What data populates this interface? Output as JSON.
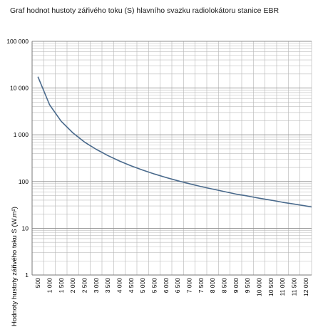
{
  "chart_data": {
    "type": "line",
    "title": "Graf hodnot hustoty zářivého toku (S) hlavního svazku radiolokátoru stanice EBR",
    "xlabel": "",
    "ylabel": "Hodnoty hustoty zářivého toku S  (W.m²)",
    "y_scale": "log",
    "ylim": [
      1,
      100000
    ],
    "xlim": [
      500,
      12000
    ],
    "grid": true,
    "line_color": "#4a6a8c",
    "y_tick_labels": [
      "100 000",
      "10 000",
      "1 000",
      "100",
      "10",
      "1"
    ],
    "y_tick_values": [
      100000,
      10000,
      1000,
      100,
      10,
      1
    ],
    "x_tick_labels": [
      "500",
      "1 000",
      "1 500",
      "2 000",
      "2 500",
      "3 000",
      "3 500",
      "4 000",
      "4 500",
      "5 000",
      "5 500",
      "6 000",
      "6 500",
      "7 000",
      "7 500",
      "8 000",
      "8 500",
      "9 000",
      "9 500",
      "10 000",
      "10 500",
      "11 000",
      "11 500",
      "12 000"
    ],
    "x_tick_values": [
      500,
      1000,
      1500,
      2000,
      2500,
      3000,
      3500,
      4000,
      4500,
      5000,
      5500,
      6000,
      6500,
      7000,
      7500,
      8000,
      8500,
      9000,
      9500,
      10000,
      10500,
      11000,
      11500,
      12000
    ],
    "series": [
      {
        "x": [
          500,
          1000,
          1500,
          2000,
          2500,
          3000,
          3500,
          4000,
          4500,
          5000,
          5500,
          6000,
          6500,
          7000,
          7500,
          8000,
          8500,
          9000,
          9500,
          10000,
          10500,
          11000,
          11500,
          12000
        ],
        "values": [
          17500,
          4400,
          1950,
          1100,
          700,
          490,
          360,
          275,
          217,
          176,
          145,
          122,
          104,
          90,
          78,
          69,
          61,
          54,
          49,
          44,
          40,
          36,
          33,
          30
        ]
      }
    ]
  }
}
